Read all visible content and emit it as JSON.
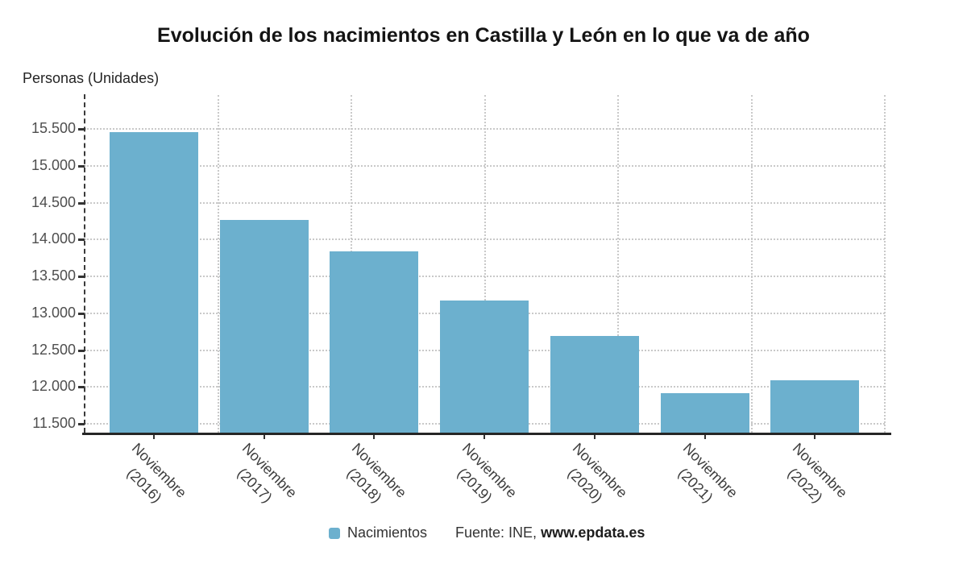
{
  "title": "Evolución de los nacimientos en Castilla y León en lo que va de año",
  "y_axis_title": "Personas (Unidades)",
  "legend": {
    "label": "Nacimientos"
  },
  "source": {
    "prefix": "Fuente: INE, ",
    "bold": "www.epdata.es"
  },
  "colors": {
    "bar": "#6cb0ce",
    "grid": "#c9c9c9",
    "axis": "#262626",
    "y_label_text": "#4e4e4e",
    "x_label_text": "#3c3c3c"
  },
  "chart_data": {
    "type": "bar",
    "title": "Evolución de los nacimientos en Castilla y León en lo que va de año",
    "xlabel": "",
    "ylabel": "Personas (Unidades)",
    "legend_position": "bottom",
    "legend_entries": [
      "Nacimientos"
    ],
    "grid": true,
    "ylim": [
      11380,
      15960
    ],
    "yticks": [
      {
        "value": 11500,
        "label": "11.500"
      },
      {
        "value": 12000,
        "label": "12.000"
      },
      {
        "value": 12500,
        "label": "12.500"
      },
      {
        "value": 13000,
        "label": "13.000"
      },
      {
        "value": 13500,
        "label": "13.500"
      },
      {
        "value": 14000,
        "label": "14.000"
      },
      {
        "value": 14500,
        "label": "14.500"
      },
      {
        "value": 15000,
        "label": "15.000"
      },
      {
        "value": 15500,
        "label": "15.500"
      }
    ],
    "categories": [
      {
        "label": "Noviembre",
        "sublabel": "(2016)"
      },
      {
        "label": "Noviembre",
        "sublabel": "(2017)"
      },
      {
        "label": "Noviembre",
        "sublabel": "(2018)"
      },
      {
        "label": "Noviembre",
        "sublabel": "(2019)"
      },
      {
        "label": "Noviembre",
        "sublabel": "(2020)"
      },
      {
        "label": "Noviembre",
        "sublabel": "(2021)"
      },
      {
        "label": "Noviembre",
        "sublabel": "(2022)"
      }
    ],
    "series": [
      {
        "name": "Nacimientos",
        "color": "#6cb0ce",
        "values": [
          15455,
          14265,
          13840,
          13170,
          12695,
          11915,
          12090
        ]
      }
    ],
    "source": "Fuente: INE, www.epdata.es"
  }
}
